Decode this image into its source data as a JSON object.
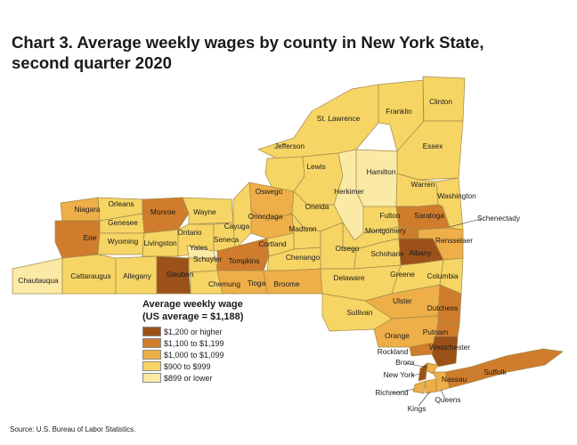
{
  "title": {
    "line1": "Chart 3. Average weekly wages by county in New York State,",
    "line2": "second quarter 2020"
  },
  "legend": {
    "title_line1": "Average weekly wage",
    "title_line2": "(US average = $1,188)",
    "bins": [
      {
        "id": "b1",
        "label": "$1,200 or higher",
        "color": "#9c5118"
      },
      {
        "id": "b2",
        "label": "$1,100 to $1,199",
        "color": "#cf7c2c"
      },
      {
        "id": "b3",
        "label": "$1,000 to $1,099",
        "color": "#eeae48"
      },
      {
        "id": "b4",
        "label": "$900 to $999",
        "color": "#f6d565"
      },
      {
        "id": "b5",
        "label": "$899 or lower",
        "color": "#fbe9a6"
      }
    ]
  },
  "counties": [
    {
      "name": "Clinton",
      "bin": "b4"
    },
    {
      "name": "Franklin",
      "bin": "b4"
    },
    {
      "name": "St. Lawrence",
      "bin": "b4"
    },
    {
      "name": "Essex",
      "bin": "b4"
    },
    {
      "name": "Jefferson",
      "bin": "b4"
    },
    {
      "name": "Lewis",
      "bin": "b4"
    },
    {
      "name": "Hamilton",
      "bin": "b5"
    },
    {
      "name": "Herkimer",
      "bin": "b5"
    },
    {
      "name": "Warren",
      "bin": "b4"
    },
    {
      "name": "Washington",
      "bin": "b4"
    },
    {
      "name": "Oswego",
      "bin": "b3"
    },
    {
      "name": "Oneida",
      "bin": "b4"
    },
    {
      "name": "Fulton",
      "bin": "b4"
    },
    {
      "name": "Saratoga",
      "bin": "b2"
    },
    {
      "name": "Schenectady",
      "bin": "b2"
    },
    {
      "name": "Niagara",
      "bin": "b3"
    },
    {
      "name": "Orleans",
      "bin": "b4"
    },
    {
      "name": "Genesee",
      "bin": "b4"
    },
    {
      "name": "Monroe",
      "bin": "b2"
    },
    {
      "name": "Wayne",
      "bin": "b4"
    },
    {
      "name": "Onondaga",
      "bin": "b3"
    },
    {
      "name": "Madison",
      "bin": "b4"
    },
    {
      "name": "Montgomery",
      "bin": "b4"
    },
    {
      "name": "Rensselaer",
      "bin": "b3"
    },
    {
      "name": "Erie",
      "bin": "b2"
    },
    {
      "name": "Wyoming",
      "bin": "b4"
    },
    {
      "name": "Livingston",
      "bin": "b4"
    },
    {
      "name": "Ontario",
      "bin": "b4"
    },
    {
      "name": "Seneca",
      "bin": "b4"
    },
    {
      "name": "Cayuga",
      "bin": "b4"
    },
    {
      "name": "Yates",
      "bin": "b5"
    },
    {
      "name": "Cortland",
      "bin": "b4"
    },
    {
      "name": "Otsego",
      "bin": "b4"
    },
    {
      "name": "Schoharie",
      "bin": "b4"
    },
    {
      "name": "Albany",
      "bin": "b1"
    },
    {
      "name": "Schuyler",
      "bin": "b4"
    },
    {
      "name": "Tompkins",
      "bin": "b2"
    },
    {
      "name": "Chenango",
      "bin": "b4"
    },
    {
      "name": "Chautauqua",
      "bin": "b5"
    },
    {
      "name": "Cattaraugus",
      "bin": "b4"
    },
    {
      "name": "Allegany",
      "bin": "b4"
    },
    {
      "name": "Steuben",
      "bin": "b1"
    },
    {
      "name": "Chemung",
      "bin": "b4"
    },
    {
      "name": "Tioga",
      "bin": "b3"
    },
    {
      "name": "Broome",
      "bin": "b3"
    },
    {
      "name": "Delaware",
      "bin": "b4"
    },
    {
      "name": "Greene",
      "bin": "b4"
    },
    {
      "name": "Columbia",
      "bin": "b4"
    },
    {
      "name": "Ulster",
      "bin": "b3"
    },
    {
      "name": "Dutchess",
      "bin": "b2"
    },
    {
      "name": "Sullivan",
      "bin": "b4"
    },
    {
      "name": "Orange",
      "bin": "b3"
    },
    {
      "name": "Putnam",
      "bin": "b2"
    },
    {
      "name": "Rockland",
      "bin": "b2"
    },
    {
      "name": "Westchester",
      "bin": "b1"
    },
    {
      "name": "Bronx",
      "bin": "b3"
    },
    {
      "name": "New York",
      "bin": "b1"
    },
    {
      "name": "Nassau",
      "bin": "b2"
    },
    {
      "name": "Suffolk",
      "bin": "b2"
    },
    {
      "name": "Richmond",
      "bin": "b3"
    },
    {
      "name": "Kings",
      "bin": "b3"
    },
    {
      "name": "Queens",
      "bin": "b3"
    }
  ],
  "source": "Source: U.S. Bureau of Labor Statistics."
}
